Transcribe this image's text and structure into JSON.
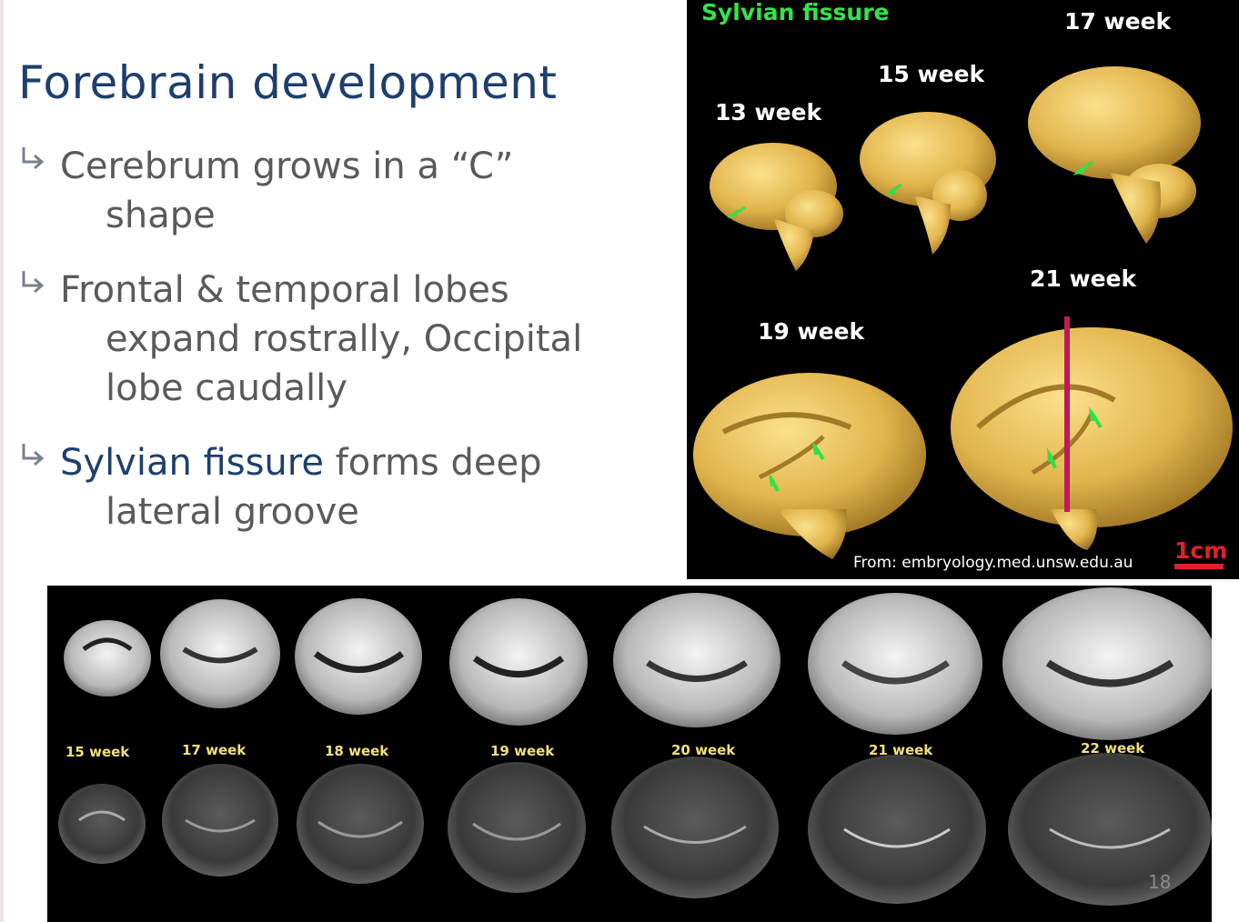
{
  "title": "Forebrain development",
  "bullets": [
    {
      "line1": "Cerebrum grows in a “C”",
      "line2": "shape"
    },
    {
      "line1": "Frontal & temporal lobes",
      "line2": "expand rostrally, Occipital",
      "line3": "lobe caudally"
    },
    {
      "accent": "Sylvian fissure",
      "rest": " forms deep",
      "line2": "lateral groove"
    }
  ],
  "figure_3d": {
    "heading": "Sylvian fissure",
    "weeks": [
      "13 week",
      "15 week",
      "17 week",
      "19 week",
      "21 week"
    ],
    "credit": "From: embryology.med.unsw.edu.au",
    "scale": "1cm",
    "heading_color": "#34e34a",
    "brain_color": "#e9c25c",
    "arrow_color": "#31e048",
    "line_color": "#c2185b"
  },
  "figure_mri": {
    "weeks": [
      "15 week",
      "17 week",
      "18 week",
      "19 week",
      "20 week",
      "21 week",
      "22 week"
    ],
    "label_color": "#f2e07a"
  },
  "slide_number": "18"
}
